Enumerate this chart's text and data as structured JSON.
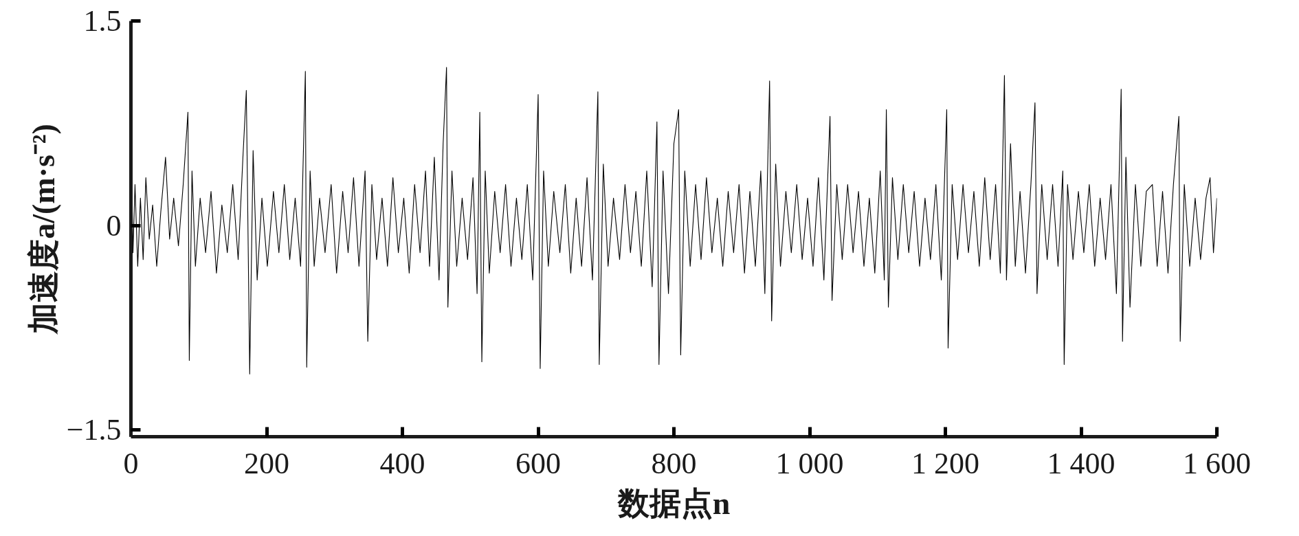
{
  "chart_data": {
    "type": "line",
    "xlabel": "数据点n",
    "ylabel": "加速度a/(m·s⁻²)",
    "xlim": [
      0,
      1600
    ],
    "ylim": [
      -1.55,
      1.5
    ],
    "xticks": [
      0,
      200,
      400,
      600,
      800,
      {
        "value": 1000,
        "label": "1 000"
      },
      {
        "value": 1200,
        "label": "1 200"
      },
      {
        "value": 1400,
        "label": "1 400"
      },
      {
        "value": 1600,
        "label": "1 600"
      }
    ],
    "yticks": [
      -1.5,
      0,
      1.5
    ],
    "series": [
      {
        "color": "#000000",
        "x": [
          0,
          3,
          6,
          10,
          14,
          18,
          22,
          27,
          32,
          38,
          44,
          51,
          57,
          63,
          70,
          77,
          84,
          86,
          90,
          95,
          102,
          110,
          118,
          126,
          134,
          142,
          150,
          158,
          165,
          170,
          175,
          180,
          186,
          193,
          201,
          210,
          218,
          226,
          234,
          242,
          250,
          257,
          259,
          264,
          270,
          278,
          286,
          295,
          303,
          312,
          320,
          328,
          336,
          345,
          349,
          355,
          362,
          370,
          378,
          386,
          394,
          402,
          410,
          418,
          426,
          434,
          440,
          447,
          454,
          460,
          465,
          467,
          473,
          480,
          488,
          496,
          504,
          510,
          514,
          517,
          522,
          528,
          536,
          544,
          552,
          560,
          568,
          576,
          584,
          592,
          600,
          603,
          608,
          615,
          623,
          632,
          640,
          648,
          656,
          664,
          672,
          680,
          688,
          690,
          696,
          703,
          711,
          720,
          728,
          736,
          744,
          752,
          760,
          768,
          775,
          778,
          784,
          792,
          800,
          807,
          810,
          816,
          824,
          832,
          840,
          848,
          856,
          864,
          872,
          880,
          888,
          896,
          904,
          912,
          920,
          928,
          934,
          941,
          944,
          950,
          957,
          965,
          973,
          981,
          989,
          997,
          1005,
          1013,
          1021,
          1030,
          1033,
          1040,
          1048,
          1056,
          1064,
          1072,
          1080,
          1088,
          1096,
          1104,
          1110,
          1113,
          1116,
          1122,
          1130,
          1138,
          1146,
          1154,
          1162,
          1170,
          1178,
          1186,
          1194,
          1202,
          1204,
          1210,
          1218,
          1226,
          1234,
          1242,
          1250,
          1258,
          1266,
          1274,
          1281,
          1287,
          1290,
          1296,
          1303,
          1310,
          1318,
          1326,
          1332,
          1335,
          1342,
          1350,
          1358,
          1366,
          1373,
          1375,
          1380,
          1388,
          1396,
          1404,
          1412,
          1420,
          1428,
          1436,
          1444,
          1452,
          1459,
          1461,
          1466,
          1472,
          1480,
          1488,
          1496,
          1505,
          1512,
          1520,
          1528,
          1536,
          1544,
          1546,
          1552,
          1560,
          1568,
          1576,
          1584,
          1590,
          1595,
          1600
        ],
        "values": [
          0.7,
          -0.2,
          0.3,
          -0.3,
          0.2,
          -0.25,
          0.35,
          -0.1,
          0.15,
          -0.3,
          0.1,
          0.5,
          -0.1,
          0.2,
          -0.15,
          0.3,
          0.83,
          -0.99,
          0.4,
          -0.3,
          0.2,
          -0.2,
          0.25,
          -0.35,
          0.15,
          -0.2,
          0.3,
          -0.25,
          0.5,
          0.99,
          -1.09,
          0.55,
          -0.4,
          0.2,
          -0.3,
          0.25,
          -0.2,
          0.3,
          -0.25,
          0.2,
          -0.3,
          1.13,
          -1.04,
          0.4,
          -0.3,
          0.2,
          -0.2,
          0.3,
          -0.35,
          0.25,
          -0.2,
          0.35,
          -0.3,
          0.4,
          -0.85,
          0.3,
          -0.25,
          0.2,
          -0.3,
          0.35,
          -0.2,
          0.2,
          -0.35,
          0.3,
          -0.2,
          0.4,
          -0.3,
          0.5,
          -0.4,
          0.6,
          1.16,
          -0.6,
          0.4,
          -0.3,
          0.2,
          -0.25,
          0.35,
          -0.5,
          0.83,
          -1.0,
          0.4,
          -0.35,
          0.25,
          -0.2,
          0.3,
          -0.3,
          0.2,
          -0.25,
          0.3,
          -0.4,
          0.96,
          -1.05,
          0.4,
          -0.3,
          0.25,
          -0.2,
          0.3,
          -0.35,
          0.2,
          -0.3,
          0.35,
          -0.4,
          0.98,
          -1.02,
          0.45,
          -0.3,
          0.2,
          -0.25,
          0.3,
          -0.2,
          0.25,
          -0.3,
          0.4,
          -0.45,
          0.76,
          -1.02,
          0.4,
          -0.5,
          0.6,
          0.85,
          -0.95,
          0.4,
          -0.3,
          0.3,
          -0.25,
          0.35,
          -0.2,
          0.2,
          -0.3,
          0.25,
          -0.2,
          0.3,
          -0.35,
          0.25,
          -0.3,
          0.4,
          -0.5,
          1.06,
          -0.7,
          0.45,
          -0.3,
          0.25,
          -0.2,
          0.3,
          -0.25,
          0.2,
          -0.3,
          0.35,
          -0.4,
          0.8,
          -0.55,
          0.3,
          -0.25,
          0.3,
          -0.2,
          0.25,
          -0.3,
          0.2,
          -0.35,
          0.4,
          -0.4,
          0.85,
          -0.6,
          0.35,
          -0.25,
          0.3,
          -0.2,
          0.25,
          -0.3,
          0.2,
          -0.25,
          0.3,
          -0.4,
          0.85,
          -0.9,
          0.3,
          -0.25,
          0.3,
          -0.2,
          0.25,
          -0.3,
          0.35,
          -0.25,
          0.3,
          -0.35,
          1.1,
          -0.4,
          0.6,
          -0.3,
          0.25,
          -0.35,
          0.3,
          0.9,
          -0.5,
          0.3,
          -0.25,
          0.3,
          -0.3,
          0.4,
          -1.02,
          0.3,
          -0.25,
          0.25,
          -0.2,
          0.3,
          -0.3,
          0.2,
          -0.25,
          0.3,
          -0.5,
          1.0,
          -0.85,
          0.5,
          -0.6,
          0.3,
          -0.3,
          0.25,
          0.3,
          -0.3,
          0.25,
          -0.35,
          0.3,
          0.8,
          -0.85,
          0.3,
          -0.3,
          0.2,
          -0.25,
          0.2,
          0.35,
          -0.2,
          0.2
        ]
      }
    ]
  }
}
